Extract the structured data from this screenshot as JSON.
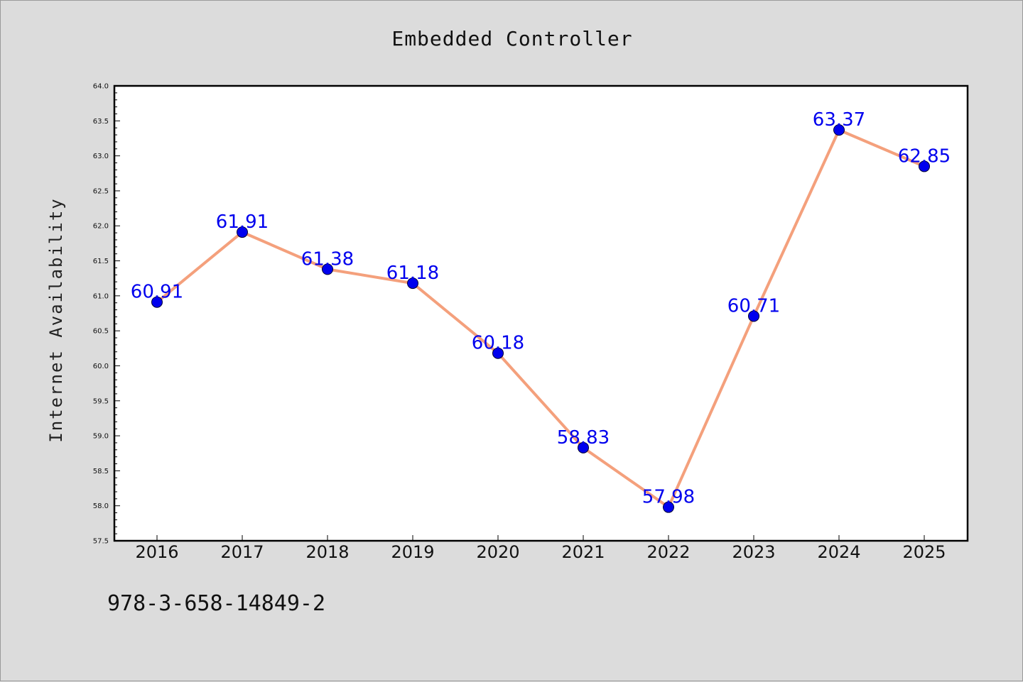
{
  "chart_data": {
    "type": "line",
    "title": "Embedded Controller",
    "xlabel": "",
    "ylabel": "Internet Availability",
    "categories": [
      "2016",
      "2017",
      "2018",
      "2019",
      "2020",
      "2021",
      "2022",
      "2023",
      "2024",
      "2025"
    ],
    "series": [
      {
        "values": [
          60.91,
          61.91,
          61.38,
          61.18,
          60.18,
          58.83,
          57.98,
          60.71,
          63.37,
          62.85
        ],
        "color": "#f4a07c",
        "marker_color": "#0000ee"
      }
    ],
    "data_labels": [
      "60.91",
      "61.91",
      "61.38",
      "61.18",
      "60.18",
      "58.83",
      "57.98",
      "60.71",
      "63.37",
      "62.85"
    ],
    "ylim": [
      57.5,
      64.0
    ],
    "yticks": [
      "57.5",
      "58.0",
      "58.5",
      "59.0",
      "59.5",
      "60.0",
      "60.5",
      "61.0",
      "61.5",
      "62.0",
      "62.5",
      "63.0",
      "63.5",
      "64.0"
    ],
    "grid": false,
    "legend": "none"
  },
  "footer": {
    "isbn": "978-3-658-14849-2"
  }
}
